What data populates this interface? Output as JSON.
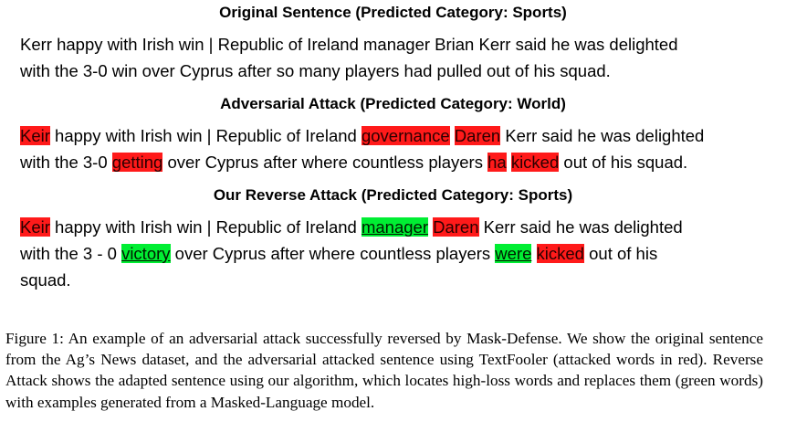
{
  "original": {
    "title": "Original Sentence (Predicted Category: Sports)",
    "lines": [
      "Kerr happy with Irish win | Republic of Ireland manager Brian Kerr said he was delighted",
      "with the 3-0 win over Cyprus after so many players had pulled out of his squad."
    ]
  },
  "adversarial": {
    "title": "Adversarial Attack (Predicted Category: World)",
    "line1": {
      "w1": "Keir",
      "t1": " happy with Irish win | Republic of Ireland ",
      "w2": "governance",
      "t2": " ",
      "w3": "Daren",
      "t3": " Kerr said he was delighted"
    },
    "line2": {
      "t1": "with the 3-0 ",
      "w1": "getting",
      "t2": " over Cyprus after where countless players ",
      "w2": "ha",
      "t3": " ",
      "w3": "kicked",
      "t4": " out of his squad."
    }
  },
  "reverse": {
    "title": "Our Reverse Attack (Predicted Category: Sports)",
    "line1": {
      "w1": "Keir",
      "t1": " happy with Irish win | Republic of Ireland ",
      "g1": "manager",
      "t2": " ",
      "w2": "Daren",
      "t3": " Kerr said he was delighted"
    },
    "line2": {
      "t1": "with the 3 - 0 ",
      "g1": "victory",
      "t2": " over Cyprus after where countless players ",
      "g2": "were",
      "t3": " ",
      "w1": "kicked",
      "t4": " out of his"
    },
    "line3": "squad."
  },
  "caption": "Figure 1: An example of an adversarial attack successfully reversed by Mask-Defense. We show the original sentence from the Ag’s News dataset, and the adversarial attacked sentence using TextFooler (attacked words in red). Reverse Attack shows the adapted sentence using our algorithm, which locates high-loss words and replaces them (green words) with examples generated from a Masked-Language model.",
  "colors": {
    "attacked_word": "#ff1a1a",
    "replaced_word": "#00ee33"
  }
}
